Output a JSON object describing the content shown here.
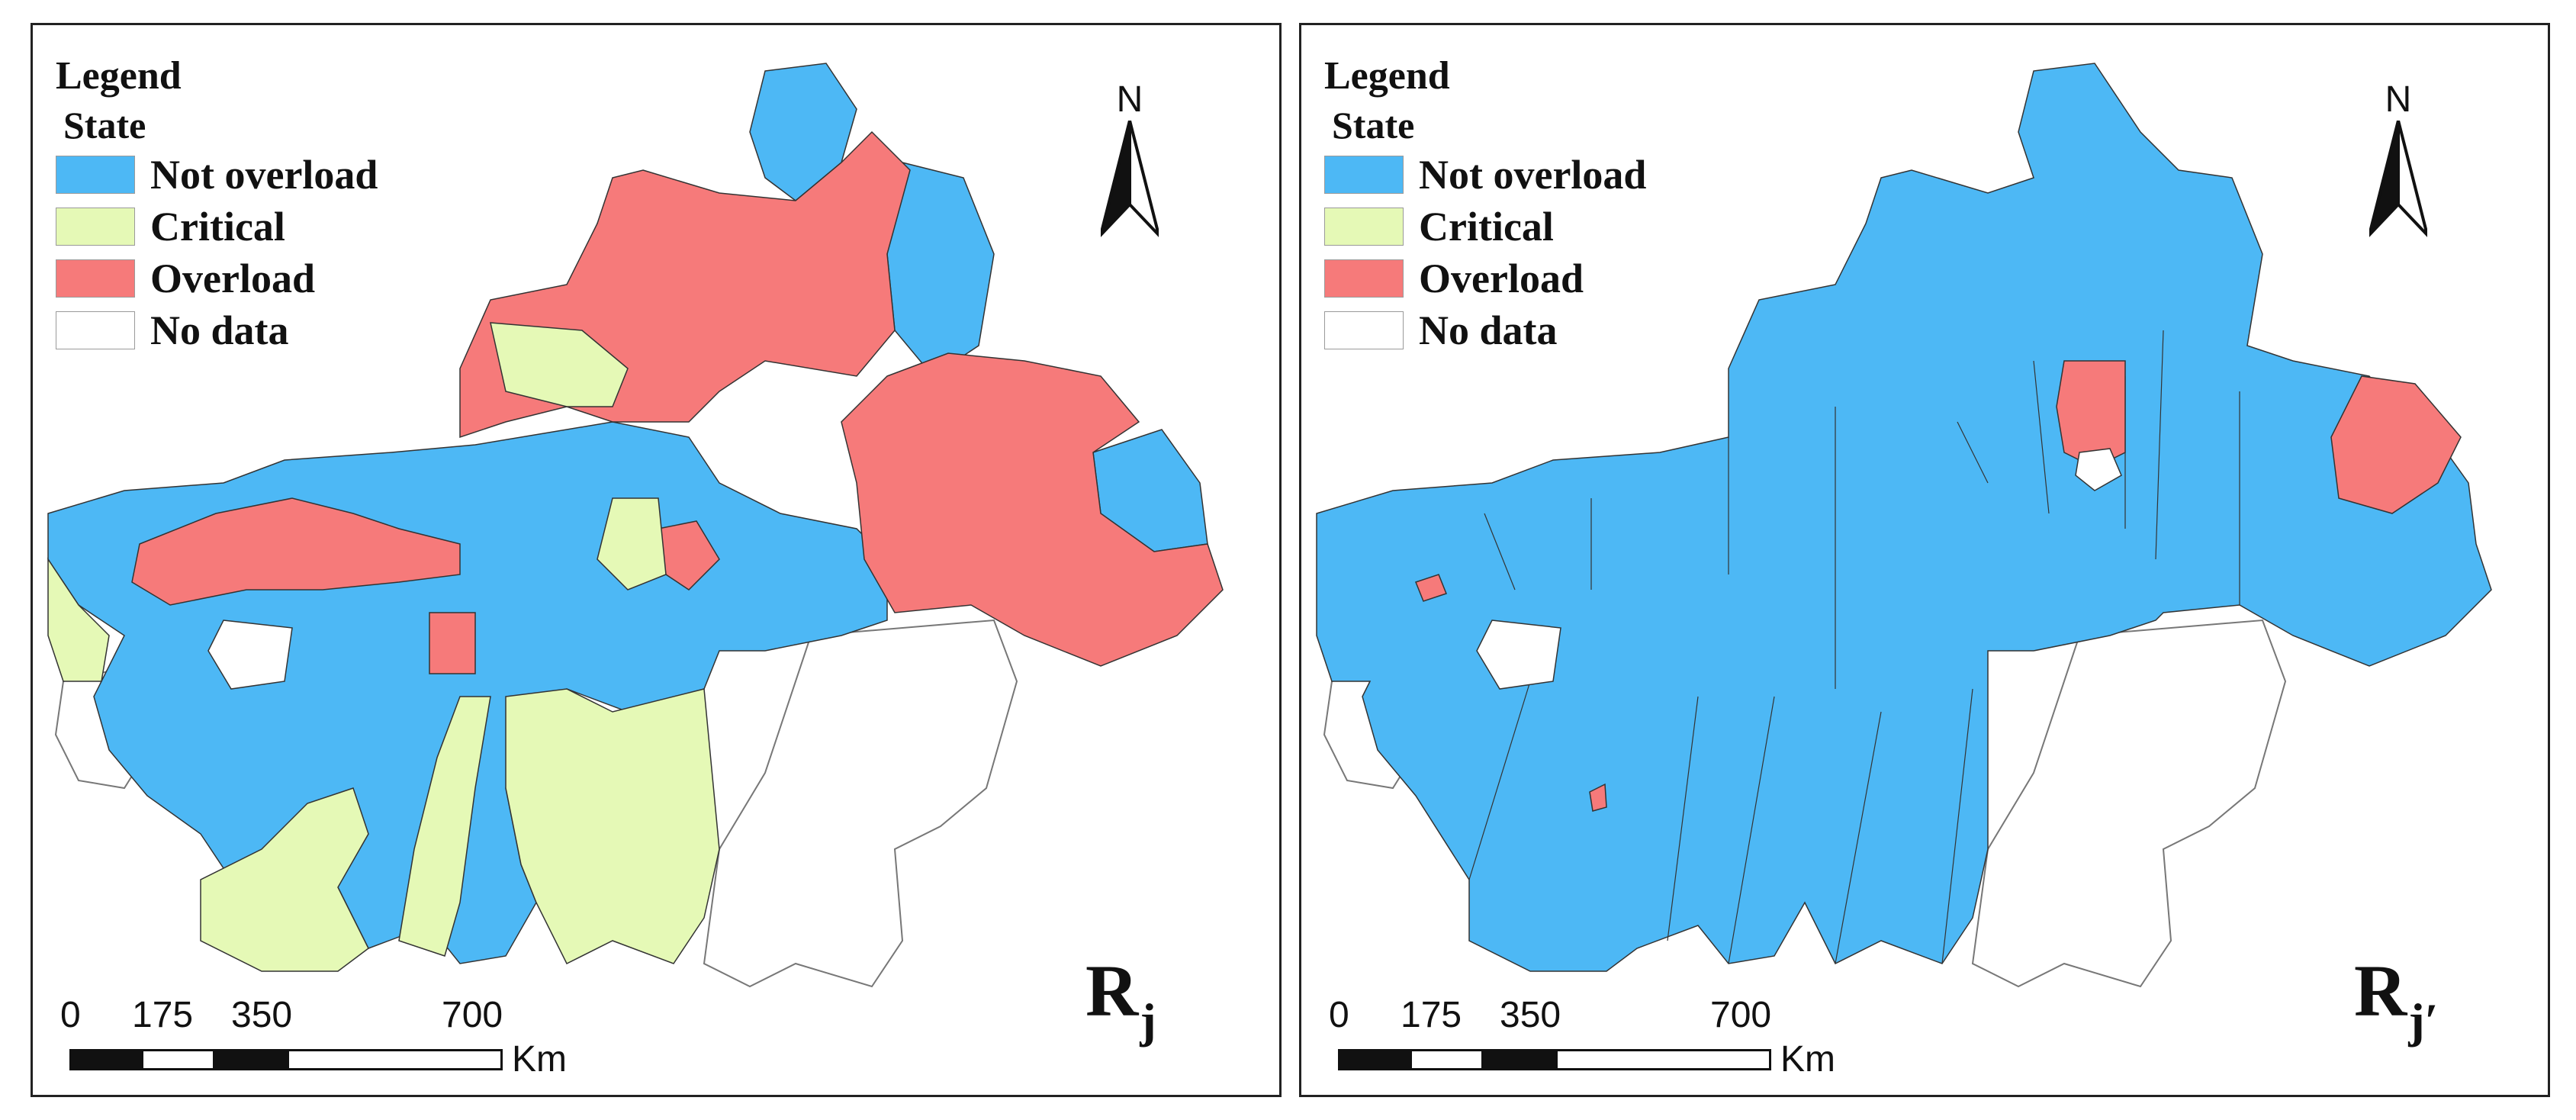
{
  "legend": {
    "title": "Legend",
    "subtitle": "State",
    "items": [
      {
        "label": "Not overload",
        "color": "#4db8f5"
      },
      {
        "label": "Critical",
        "color": "#e5f9b6"
      },
      {
        "label": "Overload",
        "color": "#f67a7a"
      },
      {
        "label": "No data",
        "color": "#ffffff"
      }
    ]
  },
  "north_label": "N",
  "scale_bar": {
    "ticks": [
      "0",
      "175",
      "350",
      "700"
    ],
    "unit": "Km"
  },
  "panels": [
    {
      "id": "left",
      "label_main": "R",
      "label_sub": "j",
      "dominant_state": "mixed: Not overload, Critical, Overload"
    },
    {
      "id": "right",
      "label_main": "R",
      "label_sub": "j′",
      "dominant_state": "mostly Not overload with few Overload regions"
    }
  ]
}
